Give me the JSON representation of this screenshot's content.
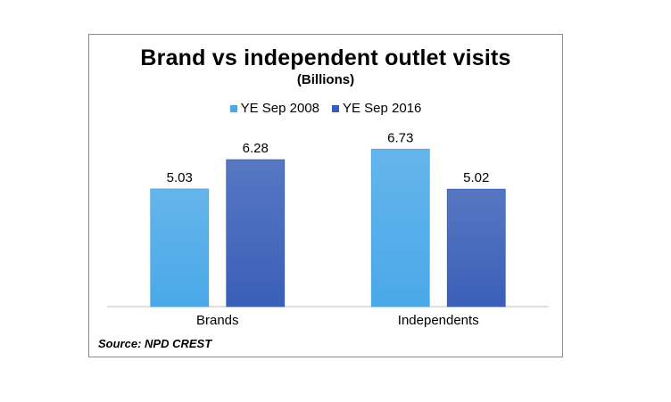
{
  "chart_data": {
    "type": "bar",
    "title": "Brand vs independent outlet visits",
    "subtitle": "(Billions)",
    "categories": [
      "Brands",
      "Independents"
    ],
    "series": [
      {
        "name": "YE Sep 2008",
        "values": [
          5.03,
          6.73
        ],
        "color": "#4aa8e8"
      },
      {
        "name": "YE Sep 2016",
        "values": [
          6.28,
          5.02
        ],
        "color": "#3a5fb8"
      }
    ],
    "ylim": [
      0,
      8
    ],
    "grid": false,
    "legend_position": "top",
    "source": "Source: NPD CREST"
  }
}
